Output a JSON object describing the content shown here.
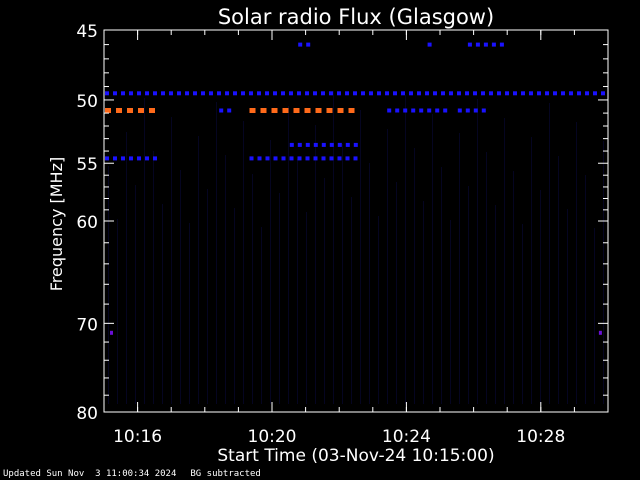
{
  "chart_data": {
    "type": "heatmap",
    "title": "Solar radio Flux (Glasgow)",
    "ylabel": "Frequency [MHz]",
    "xlabel": "Start Time (03-Nov-24 10:15:00)",
    "x_unit": "minutes after 10:15:00",
    "xlim": [
      0,
      15
    ],
    "ylim": [
      45,
      80
    ],
    "y_scale": "log",
    "y_ticks": [
      45,
      50,
      55,
      60,
      70,
      80
    ],
    "y_tick_labels": [
      "45",
      "50",
      "55",
      "60",
      "70",
      "80"
    ],
    "x_ticks": [
      1,
      5,
      9,
      13
    ],
    "x_tick_labels": [
      "10:16",
      "10:20",
      "10:24",
      "10:28"
    ],
    "colors": {
      "background": "#000000",
      "axes": "#ffffff",
      "low": "#1a12ff",
      "mid": "#6a0fd8",
      "high": "#ff6a1a"
    },
    "bands": [
      {
        "freq": 46.0,
        "t0": 5.75,
        "t1": 6.2,
        "level": "low"
      },
      {
        "freq": 46.0,
        "t0": 9.6,
        "t1": 9.8,
        "level": "low"
      },
      {
        "freq": 46.0,
        "t0": 10.8,
        "t1": 12.0,
        "level": "low"
      },
      {
        "freq": 49.5,
        "t0": 0.0,
        "t1": 15.0,
        "level": "low"
      },
      {
        "freq": 50.8,
        "t0": 0.0,
        "t1": 1.5,
        "level": "high"
      },
      {
        "freq": 50.8,
        "t0": 3.4,
        "t1": 3.9,
        "level": "low"
      },
      {
        "freq": 50.8,
        "t0": 4.3,
        "t1": 7.5,
        "level": "high"
      },
      {
        "freq": 50.8,
        "t0": 8.4,
        "t1": 10.3,
        "level": "low"
      },
      {
        "freq": 50.8,
        "t0": 10.5,
        "t1": 11.3,
        "level": "low"
      },
      {
        "freq": 53.5,
        "t0": 5.5,
        "t1": 7.5,
        "level": "low"
      },
      {
        "freq": 54.6,
        "t0": 0.0,
        "t1": 1.6,
        "level": "low"
      },
      {
        "freq": 54.6,
        "t0": 4.3,
        "t1": 7.5,
        "level": "low"
      },
      {
        "freq": 71.0,
        "t0": 0.15,
        "t1": 0.3,
        "level": "mid"
      },
      {
        "freq": 71.0,
        "t0": 14.7,
        "t1": 14.9,
        "level": "mid"
      }
    ]
  },
  "footer": {
    "updated": "Updated Sun Nov  3 11:00:34 2024",
    "note": "BG subtracted"
  }
}
